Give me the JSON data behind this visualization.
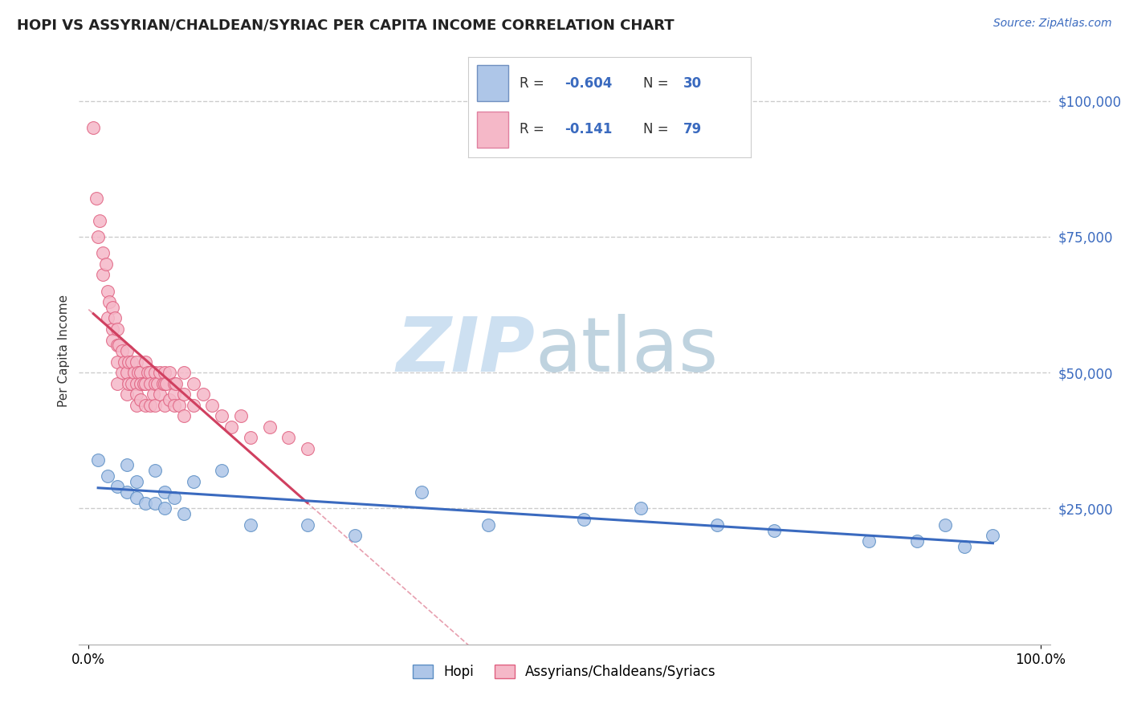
{
  "title": "HOPI VS ASSYRIAN/CHALDEAN/SYRIAC PER CAPITA INCOME CORRELATION CHART",
  "source_text": "Source: ZipAtlas.com",
  "ylabel": "Per Capita Income",
  "xlim": [
    -0.01,
    1.01
  ],
  "ylim": [
    0,
    108000
  ],
  "yticks": [
    25000,
    50000,
    75000,
    100000
  ],
  "ytick_labels": [
    "$25,000",
    "$50,000",
    "$75,000",
    "$100,000"
  ],
  "xtick_positions": [
    0.0,
    1.0
  ],
  "xtick_labels": [
    "0.0%",
    "100.0%"
  ],
  "title_fontsize": 13,
  "label_fontsize": 11,
  "tick_fontsize": 12,
  "source_fontsize": 10,
  "hopi_color": "#aec6e8",
  "assyrian_color": "#f5b8c8",
  "hopi_edge_color": "#5b8ec4",
  "assyrian_edge_color": "#e06080",
  "hopi_line_color": "#3a6abf",
  "assyrian_line_color": "#d04060",
  "legend_box_color_hopi": "#aec6e8",
  "legend_box_color_assyrian": "#f5b8c8",
  "background_color": "#ffffff",
  "grid_color": "#cccccc",
  "watermark_zip_color": "#c8ddf0",
  "watermark_atlas_color": "#b0c8d8",
  "hopi_R": "-0.604",
  "hopi_N": "30",
  "assyrian_R": "-0.141",
  "assyrian_N": "79",
  "hopi_x": [
    0.01,
    0.02,
    0.03,
    0.04,
    0.04,
    0.05,
    0.05,
    0.06,
    0.07,
    0.07,
    0.08,
    0.08,
    0.09,
    0.1,
    0.11,
    0.14,
    0.17,
    0.23,
    0.28,
    0.35,
    0.42,
    0.52,
    0.58,
    0.66,
    0.72,
    0.82,
    0.87,
    0.9,
    0.92,
    0.95
  ],
  "hopi_y": [
    34000,
    31000,
    29000,
    33000,
    28000,
    30000,
    27000,
    26000,
    32000,
    26000,
    28000,
    25000,
    27000,
    24000,
    30000,
    32000,
    22000,
    22000,
    20000,
    28000,
    22000,
    23000,
    25000,
    22000,
    21000,
    19000,
    19000,
    22000,
    18000,
    20000
  ],
  "assyrian_x": [
    0.005,
    0.008,
    0.01,
    0.012,
    0.015,
    0.015,
    0.018,
    0.02,
    0.02,
    0.022,
    0.025,
    0.025,
    0.025,
    0.028,
    0.03,
    0.03,
    0.03,
    0.03,
    0.032,
    0.035,
    0.035,
    0.038,
    0.04,
    0.04,
    0.04,
    0.042,
    0.042,
    0.045,
    0.045,
    0.048,
    0.05,
    0.05,
    0.05,
    0.05,
    0.052,
    0.055,
    0.055,
    0.055,
    0.058,
    0.06,
    0.06,
    0.06,
    0.062,
    0.065,
    0.065,
    0.065,
    0.068,
    0.07,
    0.07,
    0.07,
    0.072,
    0.075,
    0.075,
    0.078,
    0.08,
    0.08,
    0.08,
    0.082,
    0.085,
    0.085,
    0.09,
    0.09,
    0.09,
    0.092,
    0.095,
    0.1,
    0.1,
    0.1,
    0.11,
    0.11,
    0.12,
    0.13,
    0.14,
    0.15,
    0.16,
    0.17,
    0.19,
    0.21,
    0.23
  ],
  "assyrian_y": [
    95000,
    82000,
    75000,
    78000,
    72000,
    68000,
    70000,
    65000,
    60000,
    63000,
    62000,
    58000,
    56000,
    60000,
    58000,
    55000,
    52000,
    48000,
    55000,
    54000,
    50000,
    52000,
    54000,
    50000,
    46000,
    52000,
    48000,
    52000,
    48000,
    50000,
    52000,
    48000,
    46000,
    44000,
    50000,
    50000,
    48000,
    45000,
    48000,
    52000,
    48000,
    44000,
    50000,
    50000,
    48000,
    44000,
    46000,
    50000,
    48000,
    44000,
    48000,
    50000,
    46000,
    48000,
    50000,
    48000,
    44000,
    48000,
    50000,
    45000,
    48000,
    46000,
    44000,
    48000,
    44000,
    50000,
    46000,
    42000,
    48000,
    44000,
    46000,
    44000,
    42000,
    40000,
    42000,
    38000,
    40000,
    38000,
    36000
  ]
}
